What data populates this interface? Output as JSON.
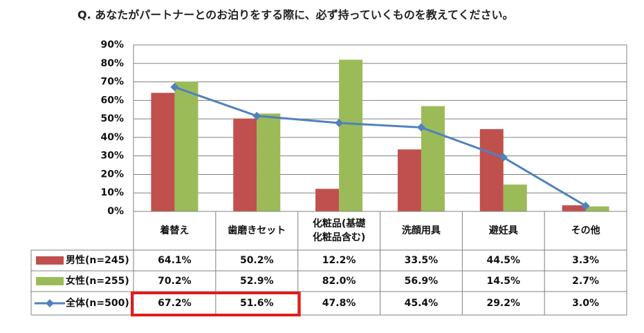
{
  "title": "Q. あなたがパートナーとのお泊りをする際に、必ず持っていくものを教えてください。",
  "colors": {
    "male": "#c0504d",
    "female": "#9bbb59",
    "total": "#4f81bd",
    "highlight": "#e31b1b",
    "grid": "#808080"
  },
  "chart_data": {
    "type": "bar",
    "title": "Q. あなたがパートナーとのお泊りをする際に、必ず持っていくものを教えてください。",
    "categories": [
      [
        "着替え"
      ],
      [
        "歯磨きセット"
      ],
      [
        "化粧品(基礎",
        "化粧品含む)"
      ],
      [
        "洗顔用具"
      ],
      [
        "避妊具"
      ],
      [
        "その他"
      ]
    ],
    "ylim": [
      0,
      90
    ],
    "yticks": [
      "0%",
      "10%",
      "20%",
      "30%",
      "40%",
      "50%",
      "60%",
      "70%",
      "80%",
      "90%"
    ],
    "grid": true,
    "series": [
      {
        "name": "男性(n=245)",
        "kind": "bar",
        "color": "#c0504d",
        "values": [
          64.1,
          50.2,
          12.2,
          33.5,
          44.5,
          3.3
        ],
        "labels": [
          "64.1%",
          "50.2%",
          "12.2%",
          "33.5%",
          "44.5%",
          "3.3%"
        ]
      },
      {
        "name": "女性(n=255)",
        "kind": "bar",
        "color": "#9bbb59",
        "values": [
          70.2,
          52.9,
          82.0,
          56.9,
          14.5,
          2.7
        ],
        "labels": [
          "70.2%",
          "52.9%",
          "82.0%",
          "56.9%",
          "14.5%",
          "2.7%"
        ]
      },
      {
        "name": "全体(n=500)",
        "kind": "line",
        "color": "#4f81bd",
        "values": [
          67.2,
          51.6,
          47.8,
          45.4,
          29.2,
          3.0
        ],
        "labels": [
          "67.2%",
          "51.6%",
          "47.8%",
          "45.4%",
          "29.2%",
          "3.0%"
        ]
      }
    ],
    "highlight": {
      "series": 2,
      "categories": [
        0,
        1
      ]
    }
  }
}
